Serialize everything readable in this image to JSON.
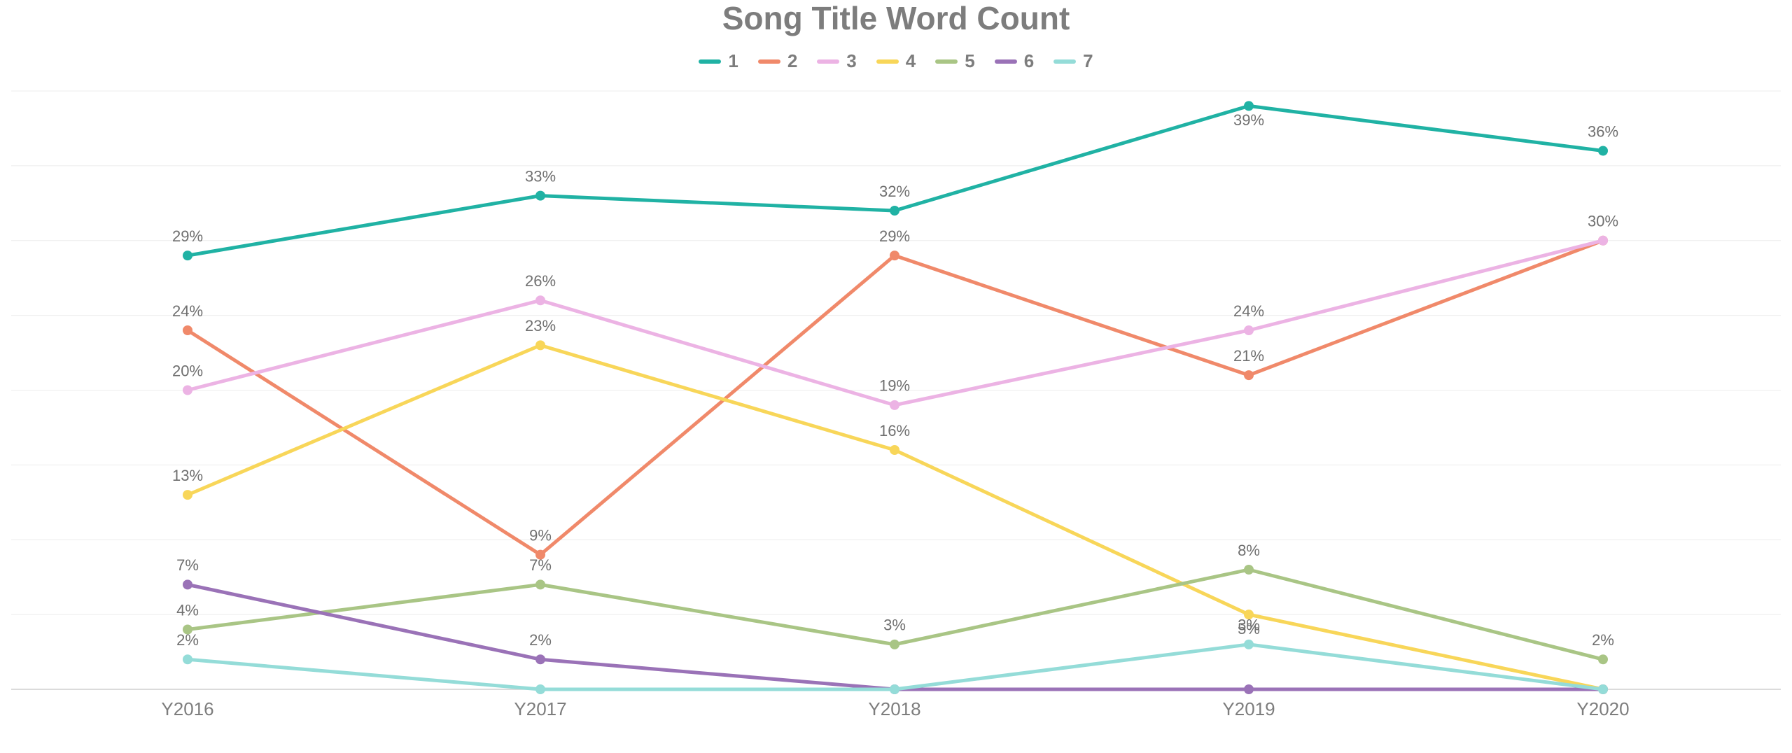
{
  "chart_data": {
    "type": "line",
    "title": "Song Title Word Count",
    "xlabel": "",
    "ylabel": "",
    "categories": [
      "Y2016",
      "Y2017",
      "Y2018",
      "Y2019",
      "Y2020"
    ],
    "ylim": [
      0,
      40
    ],
    "grid": true,
    "legend_position": "top-center",
    "value_suffix": "%",
    "series": [
      {
        "name": "1",
        "color": "#20b2a4",
        "values": [
          29,
          33,
          32,
          39,
          36
        ]
      },
      {
        "name": "2",
        "color": "#f0896a",
        "values": [
          24,
          9,
          29,
          21,
          30
        ]
      },
      {
        "name": "3",
        "color": "#ecb3e4",
        "values": [
          20,
          26,
          19,
          24,
          30
        ]
      },
      {
        "name": "4",
        "color": "#f8d659",
        "values": [
          13,
          23,
          16,
          5,
          0
        ]
      },
      {
        "name": "5",
        "color": "#a9c585",
        "values": [
          4,
          7,
          3,
          8,
          2
        ]
      },
      {
        "name": "6",
        "color": "#9a72b7",
        "values": [
          7,
          2,
          0,
          0,
          0
        ]
      },
      {
        "name": "7",
        "color": "#94dcd8",
        "values": [
          2,
          0,
          0,
          3,
          0
        ]
      }
    ],
    "data_labels": [
      {
        "series": "1",
        "category": "Y2016",
        "text": "29%",
        "position": "above"
      },
      {
        "series": "1",
        "category": "Y2017",
        "text": "33%",
        "position": "above"
      },
      {
        "series": "1",
        "category": "Y2018",
        "text": "32%",
        "position": "above"
      },
      {
        "series": "1",
        "category": "Y2019",
        "text": "39%",
        "position": "below"
      },
      {
        "series": "1",
        "category": "Y2020",
        "text": "36%",
        "position": "above"
      },
      {
        "series": "2",
        "category": "Y2016",
        "text": "24%",
        "position": "above"
      },
      {
        "series": "2",
        "category": "Y2017",
        "text": "9%",
        "position": "above"
      },
      {
        "series": "2",
        "category": "Y2018",
        "text": "29%",
        "position": "above"
      },
      {
        "series": "2",
        "category": "Y2019",
        "text": "21%",
        "position": "above"
      },
      {
        "series": "3",
        "category": "Y2016",
        "text": "20%",
        "position": "above"
      },
      {
        "series": "3",
        "category": "Y2017",
        "text": "26%",
        "position": "above"
      },
      {
        "series": "3",
        "category": "Y2018",
        "text": "19%",
        "position": "above"
      },
      {
        "series": "3",
        "category": "Y2019",
        "text": "24%",
        "position": "above"
      },
      {
        "series": "3",
        "category": "Y2020",
        "text": "30%",
        "position": "above"
      },
      {
        "series": "4",
        "category": "Y2016",
        "text": "13%",
        "position": "above"
      },
      {
        "series": "4",
        "category": "Y2017",
        "text": "23%",
        "position": "above"
      },
      {
        "series": "4",
        "category": "Y2018",
        "text": "16%",
        "position": "above"
      },
      {
        "series": "4",
        "category": "Y2019",
        "text": "5%",
        "position": "below"
      },
      {
        "series": "5",
        "category": "Y2016",
        "text": "4%",
        "position": "above"
      },
      {
        "series": "5",
        "category": "Y2017",
        "text": "7%",
        "position": "above"
      },
      {
        "series": "5",
        "category": "Y2018",
        "text": "3%",
        "position": "above"
      },
      {
        "series": "5",
        "category": "Y2019",
        "text": "8%",
        "position": "above"
      },
      {
        "series": "5",
        "category": "Y2020",
        "text": "2%",
        "position": "above"
      },
      {
        "series": "6",
        "category": "Y2016",
        "text": "7%",
        "position": "above"
      },
      {
        "series": "6",
        "category": "Y2017",
        "text": "2%",
        "position": "above"
      },
      {
        "series": "7",
        "category": "Y2016",
        "text": "2%",
        "position": "above"
      },
      {
        "series": "7",
        "category": "Y2019",
        "text": "3%",
        "position": "above"
      }
    ]
  }
}
